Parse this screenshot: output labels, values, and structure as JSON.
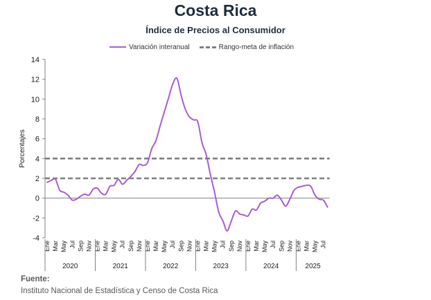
{
  "header": {
    "title": "Costa Rica",
    "subtitle": "Índice de Precios al Consumidor"
  },
  "legend": {
    "series_label": "Variación interanual",
    "target_label": "Rango-meta de inflación"
  },
  "source": {
    "label": "Fuente:",
    "text": "Instituto Nacional de Estadística y Censo de Costa Rica"
  },
  "colors": {
    "series": "#a95bd1",
    "target": "#7f7f7f",
    "title": "#1f2d3d"
  },
  "chart_data": {
    "type": "line",
    "title": "Costa Rica",
    "subtitle": "Índice de Precios al Consumidor",
    "xlabel": "",
    "ylabel": "Porcentajes",
    "ylim": [
      -4,
      14
    ],
    "yticks": [
      -4,
      -2,
      0,
      2,
      4,
      6,
      8,
      10,
      12,
      14
    ],
    "grid": false,
    "legend_position": "top",
    "month_tick_labels": [
      "Ene",
      "Mar",
      "May",
      "Jul",
      "Sep",
      "Nov",
      "Ene",
      "Mar",
      "May",
      "Jul",
      "Sep",
      "Nov",
      "Ene",
      "Mar",
      "May",
      "Jul",
      "Sep",
      "Nov",
      "Ene",
      "Mar",
      "May",
      "Jul",
      "Sep",
      "Nov",
      "Ene",
      "Mar",
      "May",
      "Jul",
      "Sep",
      "Nov",
      "Ene",
      "Mar",
      "May",
      "Jul"
    ],
    "year_labels": [
      "2020",
      "2021",
      "2022",
      "2023",
      "2024",
      "2025"
    ],
    "x": [
      "2020-01",
      "2020-02",
      "2020-03",
      "2020-04",
      "2020-05",
      "2020-06",
      "2020-07",
      "2020-08",
      "2020-09",
      "2020-10",
      "2020-11",
      "2020-12",
      "2021-01",
      "2021-02",
      "2021-03",
      "2021-04",
      "2021-05",
      "2021-06",
      "2021-07",
      "2021-08",
      "2021-09",
      "2021-10",
      "2021-11",
      "2021-12",
      "2022-01",
      "2022-02",
      "2022-03",
      "2022-04",
      "2022-05",
      "2022-06",
      "2022-07",
      "2022-08",
      "2022-09",
      "2022-10",
      "2022-11",
      "2022-12",
      "2023-01",
      "2023-02",
      "2023-03",
      "2023-04",
      "2023-05",
      "2023-06",
      "2023-07",
      "2023-08",
      "2023-09",
      "2023-10",
      "2023-11",
      "2023-12",
      "2024-01",
      "2024-02",
      "2024-03",
      "2024-04",
      "2024-05",
      "2024-06",
      "2024-07",
      "2024-08",
      "2024-09",
      "2024-10",
      "2024-11",
      "2024-12",
      "2025-01",
      "2025-02",
      "2025-03",
      "2025-04",
      "2025-05",
      "2025-06",
      "2025-07",
      "2025-08"
    ],
    "series": [
      {
        "name": "Variación interanual",
        "values": [
          1.6,
          1.8,
          1.9,
          0.8,
          0.6,
          0.3,
          -0.2,
          -0.1,
          0.2,
          0.4,
          0.3,
          0.9,
          1.0,
          0.5,
          0.4,
          1.2,
          1.3,
          1.9,
          1.4,
          1.8,
          2.2,
          2.7,
          3.4,
          3.3,
          3.6,
          5.0,
          5.8,
          7.3,
          8.7,
          10.1,
          11.5,
          12.1,
          10.4,
          9.0,
          8.2,
          7.9,
          7.7,
          5.6,
          4.4,
          2.4,
          0.6,
          -1.4,
          -2.3,
          -3.3,
          -2.3,
          -1.3,
          -1.6,
          -1.7,
          -1.8,
          -1.1,
          -1.2,
          -0.5,
          -0.3,
          0.0,
          0.0,
          0.3,
          -0.2,
          -0.8,
          -0.1,
          0.8,
          1.1,
          1.2,
          1.3,
          1.2,
          0.3,
          -0.1,
          -0.2,
          -0.9
        ]
      },
      {
        "name": "Rango-meta de inflación",
        "values_upper": 4,
        "values_lower": 2
      }
    ]
  }
}
